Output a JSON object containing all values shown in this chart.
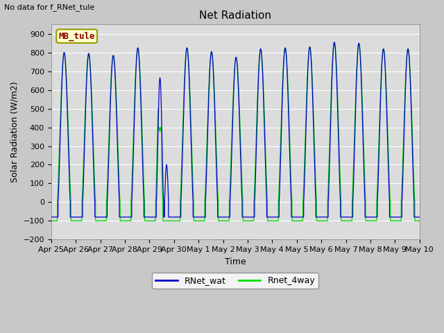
{
  "title": "Net Radiation",
  "subtitle": "No data for f_RNet_tule",
  "ylabel": "Solar Radiation (W/m2)",
  "xlabel": "Time",
  "ylim": [
    -200,
    950
  ],
  "yticks": [
    -200,
    -100,
    0,
    100,
    200,
    300,
    400,
    500,
    600,
    700,
    800,
    900
  ],
  "plot_bg_color": "#dcdcdc",
  "fig_bg_color": "#c8c8c8",
  "line1_color": "#0000cc",
  "line2_color": "#00dd00",
  "line1_label": "RNet_wat",
  "line2_label": "Rnet_4way",
  "annotation_text": "MB_tule",
  "annotation_color": "#8b0000",
  "annotation_bg": "#ffffcc",
  "annotation_border": "#999900",
  "num_days": 15,
  "xtick_labels": [
    "Apr 25",
    "Apr 26",
    "Apr 27",
    "Apr 28",
    "Apr 29",
    "Apr 30",
    "May 1",
    "May 2",
    "May 3",
    "May 4",
    "May 5",
    "May 6",
    "May 7",
    "May 8",
    "May 9",
    "May 10"
  ],
  "peaks_blue": [
    800,
    795,
    785,
    825,
    665,
    825,
    805,
    775,
    820,
    825,
    830,
    855,
    850,
    820,
    820
  ],
  "peaks_green": [
    800,
    795,
    785,
    825,
    630,
    825,
    805,
    775,
    820,
    825,
    830,
    855,
    850,
    820,
    820
  ],
  "night_blue": -80,
  "night_green": -100,
  "grid_color": "#ffffff",
  "font_size_tick": 8,
  "font_size_label": 9,
  "font_size_title": 11,
  "font_size_annot": 9,
  "font_size_legend": 9
}
